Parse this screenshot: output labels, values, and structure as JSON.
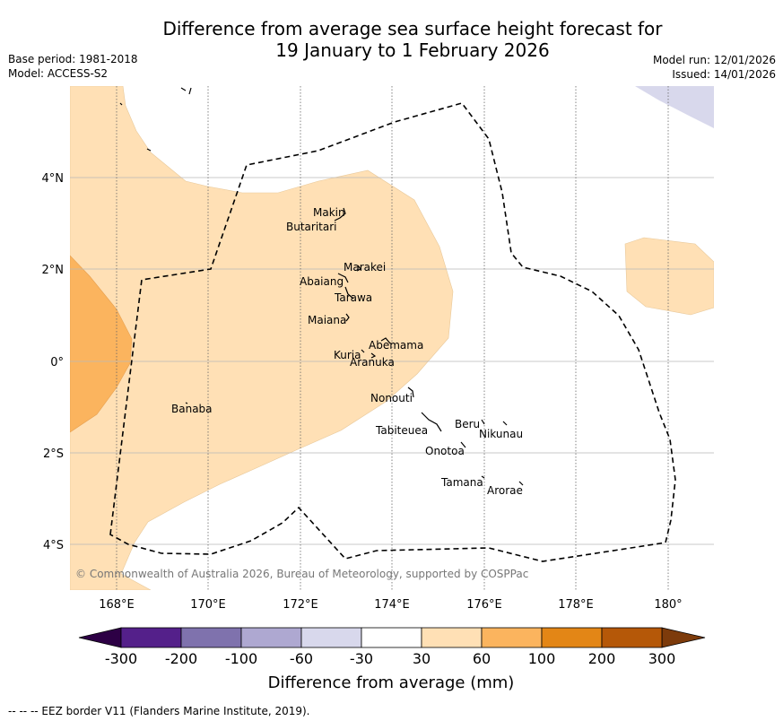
{
  "title": {
    "line1": "Difference from average sea surface height forecast for",
    "line2": "19 January to 1 February 2026"
  },
  "meta": {
    "base_period": "Base period: 1981-2018",
    "model": "Model: ACCESS-S2",
    "model_run": "Model run: 12/01/2026",
    "issued": "Issued: 14/01/2026"
  },
  "map": {
    "lon_labels": [
      "168°E",
      "170°E",
      "172°E",
      "174°E",
      "176°E",
      "178°E",
      "180°"
    ],
    "lat_labels": [
      "4°N",
      "2°N",
      "0°",
      "2°S",
      "4°S"
    ],
    "islands": [
      "Makin",
      "Butaritari",
      "Marakei",
      "Abaiang",
      "Tarawa",
      "Maiana",
      "Abemama",
      "Kuria",
      "Aranuka",
      "Banaba",
      "Nonouti",
      "Beru",
      "Nikunau",
      "Tabiteuea",
      "Onotoa",
      "Tamana",
      "Arorae"
    ],
    "copyright": "© Commonwealth of Australia 2026, Bureau of Meteorology, supported by COSPPac"
  },
  "colorbar": {
    "ticks": [
      "-300",
      "-200",
      "-100",
      "-60",
      "-30",
      "30",
      "60",
      "100",
      "200",
      "300"
    ],
    "colors": [
      "#54208a",
      "#7f72ad",
      "#aea8d1",
      "#d8d8ec",
      "#ffffff",
      "#ffe0b5",
      "#fbb45e",
      "#e38616",
      "#b55808"
    ],
    "under_color": "#2d0045",
    "over_color": "#7d3b0b",
    "label": "Difference from average (mm)"
  },
  "footer": "--  --  -- EEZ border V11 (Flanders Marine Institute, 2019)."
}
